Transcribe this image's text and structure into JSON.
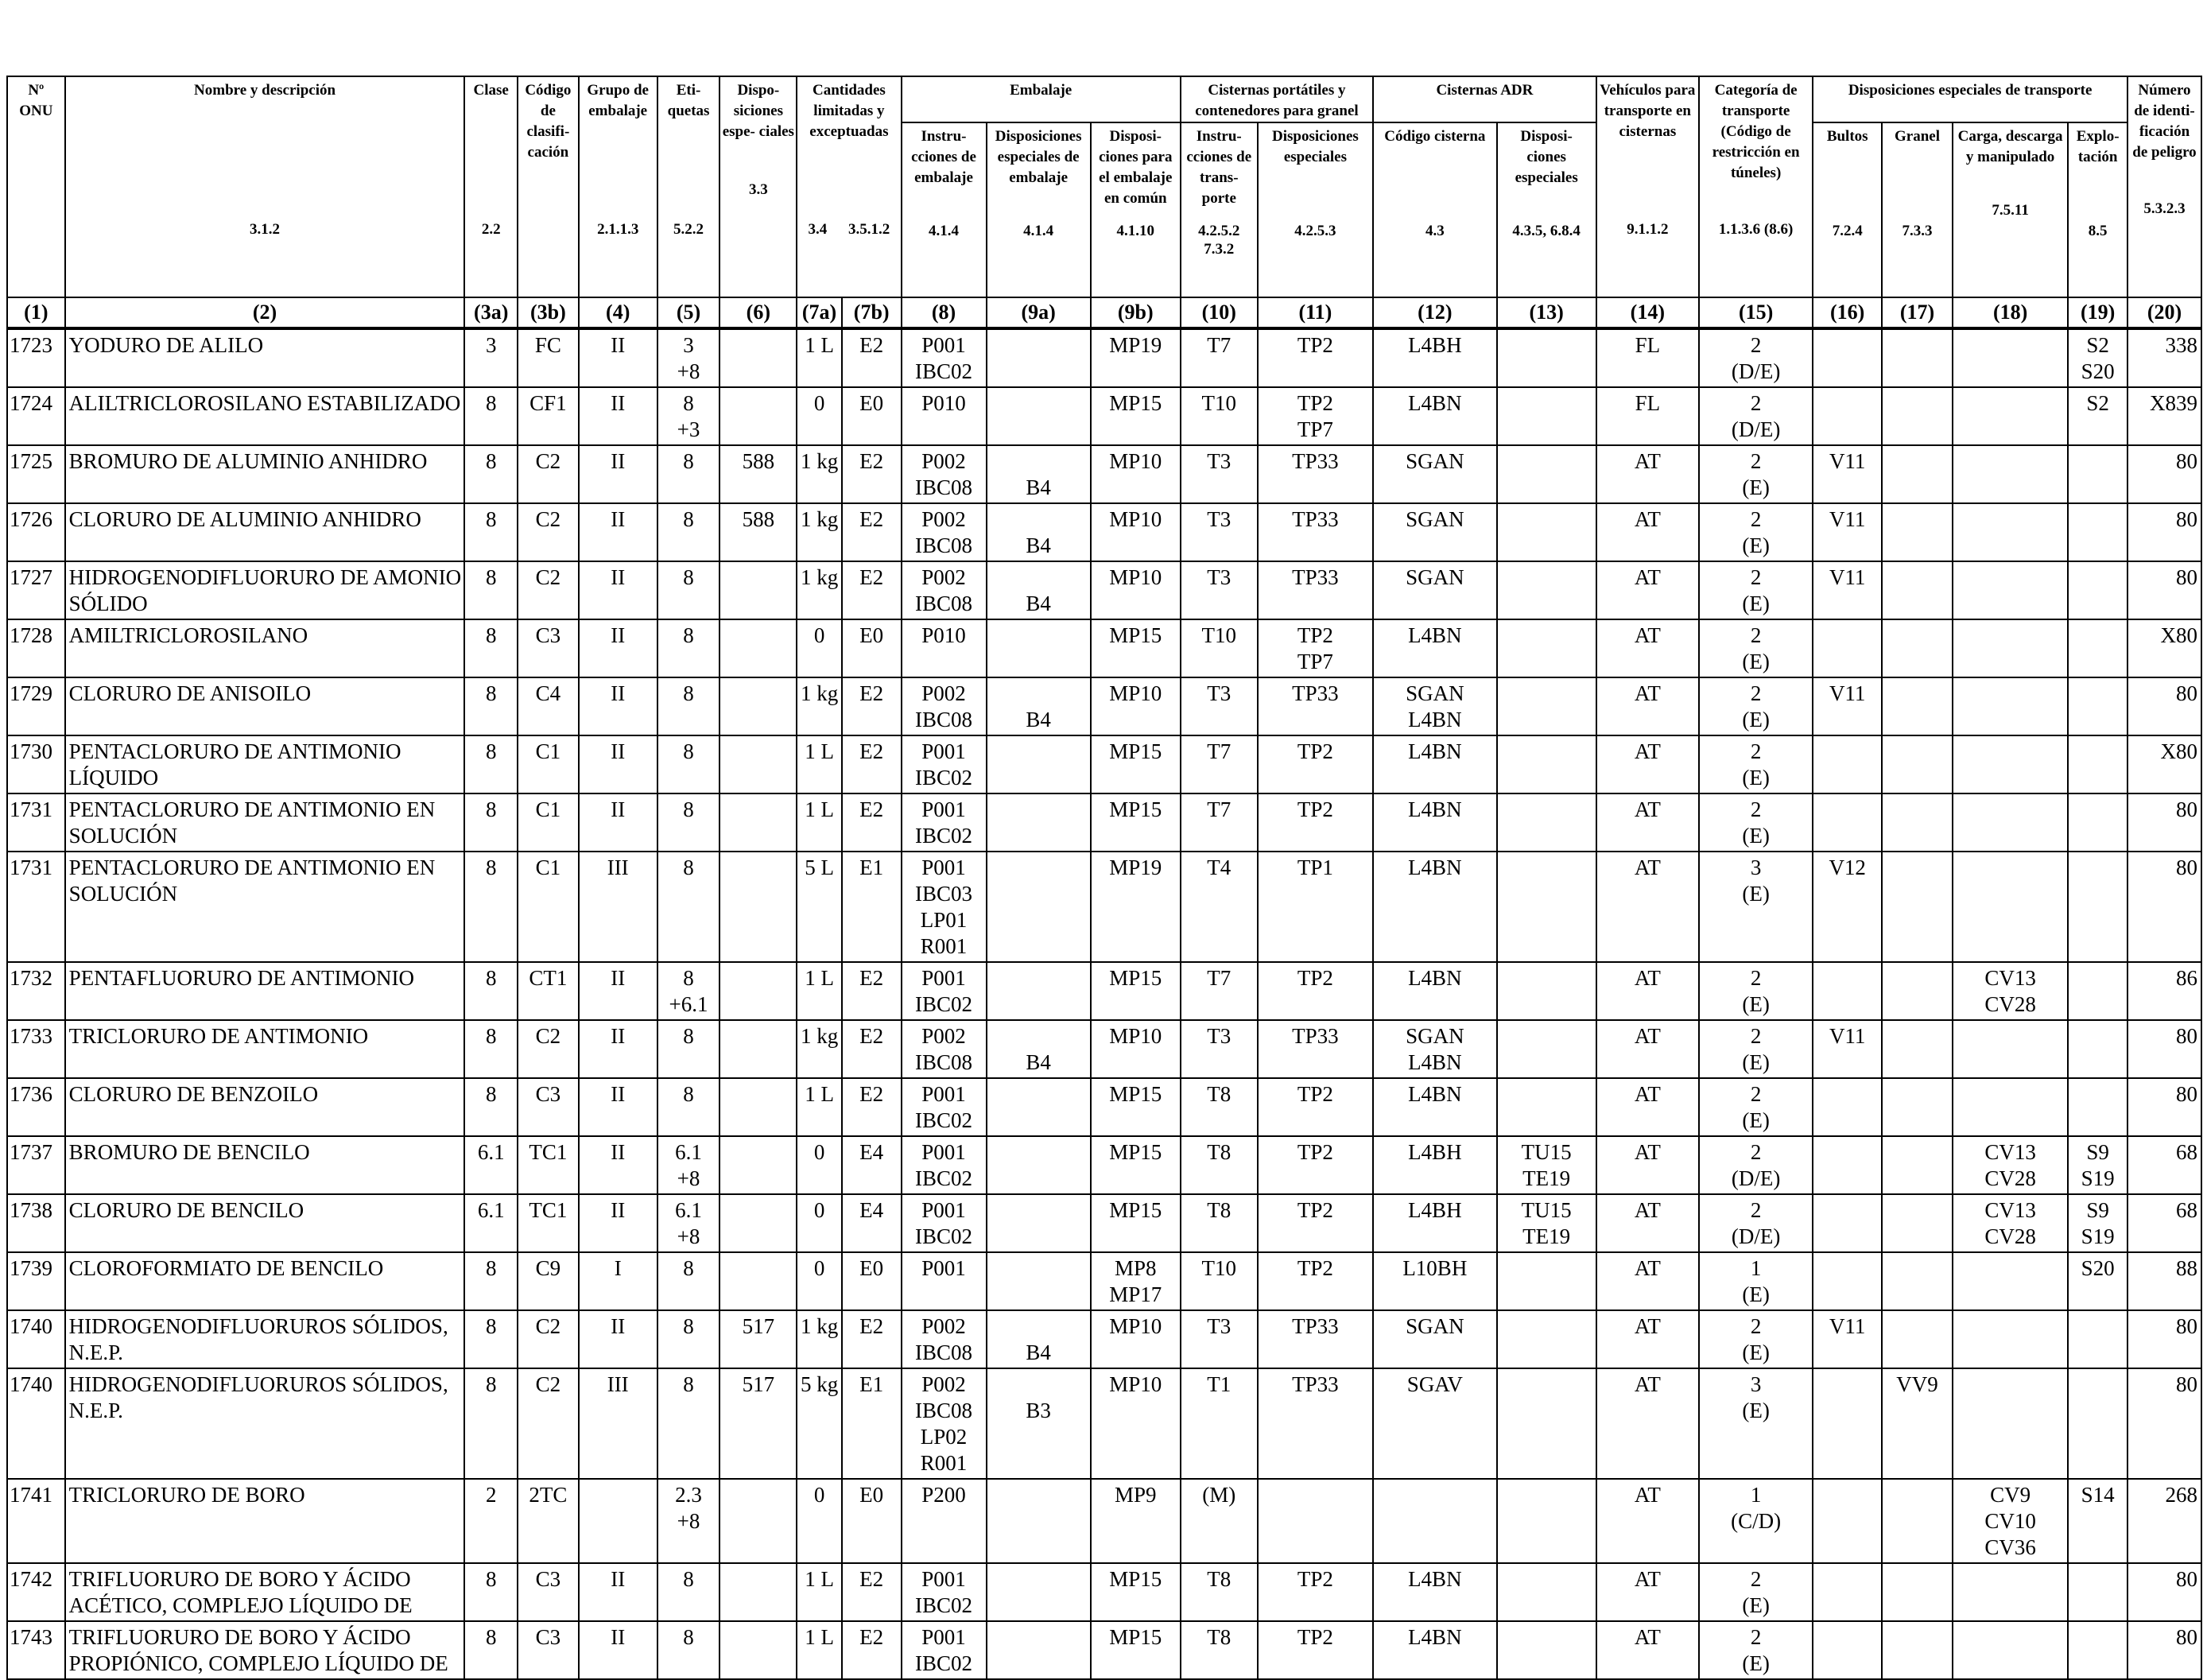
{
  "header": {
    "onu": "Nº ONU",
    "nombre": "Nombre y descripción",
    "clase": "Clase",
    "codigo": "Código de clasifi- cación",
    "grupo": "Grupo de embalaje",
    "etiquetas": "Eti- quetas",
    "disposiciones": "Dispo- siciones espe- ciales",
    "cantidades": "Cantidades limitadas y exceptuadas",
    "embalaje": "Embalaje",
    "instrucciones_embalaje": "Instru- cciones de embalaje",
    "disp_esp_embalaje": "Disposiciones especiales de embalaje",
    "disp_embalaje_comun": "Disposi- ciones para el embalaje en común",
    "cisternas_portatiles": "Cisternas portátiles y contenedores para granel",
    "instrucciones_transporte": "Instru- cciones de trans- porte",
    "disp_especiales_cisternas": "Disposiciones especiales",
    "cisternas_adr": "Cisternas ADR",
    "codigo_cisterna": "Código cisterna",
    "disp_especiales_adr": "Disposi- ciones especiales",
    "vehiculos": "Vehículos para transporte en cisternas",
    "categoria": "Categoría de transporte (Código de restricción en túneles)",
    "disp_esp_transporte": "Disposiciones especiales de transporte",
    "bultos": "Bultos",
    "granel": "Granel",
    "carga": "Carga, descarga y manipulado",
    "explotacion": "Explo- tación",
    "numero_peligro": "Número de identi- ficación de peligro"
  },
  "references": {
    "nombre": "3.1.2",
    "clase": "2.2",
    "grupo": "2.1.1.3",
    "etiquetas": "5.2.2",
    "disposiciones": "3.3",
    "lq": "3.4",
    "eq": "3.5.1.2",
    "instrucciones_embalaje": "4.1.4",
    "disp_esp_embalaje": "4.1.4",
    "disp_embalaje_comun": "4.1.10",
    "instrucciones_transporte": "4.2.5.2 7.3.2",
    "disp_especiales_cisternas": "4.2.5.3",
    "codigo_cisterna": "4.3",
    "disp_especiales_adr": "4.3.5, 6.8.4",
    "vehiculos": "9.1.1.2",
    "categoria": "1.1.3.6 (8.6)",
    "bultos": "7.2.4",
    "granel": "7.3.3",
    "carga": "7.5.11",
    "explotacion": "8.5",
    "numero_peligro": "5.3.2.3"
  },
  "column_numbers": [
    "(1)",
    "(2)",
    "(3a)",
    "(3b)",
    "(4)",
    "(5)",
    "(6)",
    "(7a)",
    "(7b)",
    "(8)",
    "(9a)",
    "(9b)",
    "(10)",
    "(11)",
    "(12)",
    "(13)",
    "(14)",
    "(15)",
    "(16)",
    "(17)",
    "(18)",
    "(19)",
    "(20)"
  ],
  "rows": [
    {
      "onu": "1723",
      "name": "YODURO DE ALILO",
      "clase": "3",
      "codigo": "FC",
      "grupo": "II",
      "etiquetas": [
        "3",
        "+8"
      ],
      "disp": "",
      "lq": "1 L",
      "eq": "E2",
      "pi": [
        "P001",
        "IBC02"
      ],
      "pp": [],
      "mp": [
        "MP19"
      ],
      "tpi": [
        "T7"
      ],
      "tp": [
        "TP2"
      ],
      "tank": [
        "L4BH"
      ],
      "tu": [],
      "veh": "FL",
      "cat": [
        "2",
        "(D/E)"
      ],
      "v": [],
      "vv": [],
      "cv": [],
      "s": [
        "S2",
        "S20"
      ],
      "hin": "338"
    },
    {
      "onu": "1724",
      "name": "ALILTRICLOROSILANO ESTABILIZADO",
      "clase": "8",
      "codigo": "CF1",
      "grupo": "II",
      "etiquetas": [
        "8",
        "+3"
      ],
      "disp": "",
      "lq": "0",
      "eq": "E0",
      "pi": [
        "P010"
      ],
      "pp": [],
      "mp": [
        "MP15"
      ],
      "tpi": [
        "T10"
      ],
      "tp": [
        "TP2",
        "TP7"
      ],
      "tank": [
        "L4BN"
      ],
      "tu": [],
      "veh": "FL",
      "cat": [
        "2",
        "(D/E)"
      ],
      "v": [],
      "vv": [],
      "cv": [],
      "s": [
        "S2"
      ],
      "hin": "X839"
    },
    {
      "onu": "1725",
      "name": "BROMURO DE ALUMINIO ANHIDRO",
      "clase": "8",
      "codigo": "C2",
      "grupo": "II",
      "etiquetas": [
        "8"
      ],
      "disp": "588",
      "lq": "1 kg",
      "eq": "E2",
      "pi": [
        "P002",
        "IBC08"
      ],
      "pp": [
        "",
        "B4"
      ],
      "mp": [
        "MP10"
      ],
      "tpi": [
        "T3"
      ],
      "tp": [
        "TP33"
      ],
      "tank": [
        "SGAN"
      ],
      "tu": [],
      "veh": "AT",
      "cat": [
        "2",
        "(E)"
      ],
      "v": [
        "V11"
      ],
      "vv": [],
      "cv": [],
      "s": [],
      "hin": "80"
    },
    {
      "onu": "1726",
      "name": "CLORURO DE ALUMINIO ANHIDRO",
      "clase": "8",
      "codigo": "C2",
      "grupo": "II",
      "etiquetas": [
        "8"
      ],
      "disp": "588",
      "lq": "1 kg",
      "eq": "E2",
      "pi": [
        "P002",
        "IBC08"
      ],
      "pp": [
        "",
        "B4"
      ],
      "mp": [
        "MP10"
      ],
      "tpi": [
        "T3"
      ],
      "tp": [
        "TP33"
      ],
      "tank": [
        "SGAN"
      ],
      "tu": [],
      "veh": "AT",
      "cat": [
        "2",
        "(E)"
      ],
      "v": [
        "V11"
      ],
      "vv": [],
      "cv": [],
      "s": [],
      "hin": "80"
    },
    {
      "onu": "1727",
      "name": "HIDROGENODIFLUORURO DE AMONIO SÓLIDO",
      "clase": "8",
      "codigo": "C2",
      "grupo": "II",
      "etiquetas": [
        "8"
      ],
      "disp": "",
      "lq": "1 kg",
      "eq": "E2",
      "pi": [
        "P002",
        "IBC08"
      ],
      "pp": [
        "",
        "B4"
      ],
      "mp": [
        "MP10"
      ],
      "tpi": [
        "T3"
      ],
      "tp": [
        "TP33"
      ],
      "tank": [
        "SGAN"
      ],
      "tu": [],
      "veh": "AT",
      "cat": [
        "2",
        "(E)"
      ],
      "v": [
        "V11"
      ],
      "vv": [],
      "cv": [],
      "s": [],
      "hin": "80"
    },
    {
      "onu": "1728",
      "name": "AMILTRICLOROSILANO",
      "clase": "8",
      "codigo": "C3",
      "grupo": "II",
      "etiquetas": [
        "8"
      ],
      "disp": "",
      "lq": "0",
      "eq": "E0",
      "pi": [
        "P010"
      ],
      "pp": [],
      "mp": [
        "MP15"
      ],
      "tpi": [
        "T10"
      ],
      "tp": [
        "TP2",
        "TP7"
      ],
      "tank": [
        "L4BN"
      ],
      "tu": [],
      "veh": "AT",
      "cat": [
        "2",
        "(E)"
      ],
      "v": [],
      "vv": [],
      "cv": [],
      "s": [],
      "hin": "X80"
    },
    {
      "onu": "1729",
      "name": "CLORURO DE ANISOILO",
      "clase": "8",
      "codigo": "C4",
      "grupo": "II",
      "etiquetas": [
        "8"
      ],
      "disp": "",
      "lq": "1 kg",
      "eq": "E2",
      "pi": [
        "P002",
        "IBC08"
      ],
      "pp": [
        "",
        "B4"
      ],
      "mp": [
        "MP10"
      ],
      "tpi": [
        "T3"
      ],
      "tp": [
        "TP33"
      ],
      "tank": [
        "SGAN",
        "L4BN"
      ],
      "tu": [],
      "veh": "AT",
      "cat": [
        "2",
        "(E)"
      ],
      "v": [
        "V11"
      ],
      "vv": [],
      "cv": [],
      "s": [],
      "hin": "80"
    },
    {
      "onu": "1730",
      "name": "PENTACLORURO DE ANTIMONIO LÍQUIDO",
      "clase": "8",
      "codigo": "C1",
      "grupo": "II",
      "etiquetas": [
        "8"
      ],
      "disp": "",
      "lq": "1 L",
      "eq": "E2",
      "pi": [
        "P001",
        "IBC02"
      ],
      "pp": [],
      "mp": [
        "MP15"
      ],
      "tpi": [
        "T7"
      ],
      "tp": [
        "TP2"
      ],
      "tank": [
        "L4BN"
      ],
      "tu": [],
      "veh": "AT",
      "cat": [
        "2",
        "(E)"
      ],
      "v": [],
      "vv": [],
      "cv": [],
      "s": [],
      "hin": "X80"
    },
    {
      "onu": "1731",
      "name": "PENTACLORURO DE ANTIMONIO EN SOLUCIÓN",
      "clase": "8",
      "codigo": "C1",
      "grupo": "II",
      "etiquetas": [
        "8"
      ],
      "disp": "",
      "lq": "1 L",
      "eq": "E2",
      "pi": [
        "P001",
        "IBC02"
      ],
      "pp": [],
      "mp": [
        "MP15"
      ],
      "tpi": [
        "T7"
      ],
      "tp": [
        "TP2"
      ],
      "tank": [
        "L4BN"
      ],
      "tu": [],
      "veh": "AT",
      "cat": [
        "2",
        "(E)"
      ],
      "v": [],
      "vv": [],
      "cv": [],
      "s": [],
      "hin": "80"
    },
    {
      "onu": "1731",
      "name": "PENTACLORURO DE ANTIMONIO EN SOLUCIÓN",
      "clase": "8",
      "codigo": "C1",
      "grupo": "III",
      "etiquetas": [
        "8"
      ],
      "disp": "",
      "lq": "5 L",
      "eq": "E1",
      "pi": [
        "P001",
        "IBC03",
        "LP01",
        "R001"
      ],
      "pp": [],
      "mp": [
        "MP19"
      ],
      "tpi": [
        "T4"
      ],
      "tp": [
        "TP1"
      ],
      "tank": [
        "L4BN"
      ],
      "tu": [],
      "veh": "AT",
      "cat": [
        "3",
        "(E)"
      ],
      "v": [
        "V12"
      ],
      "vv": [],
      "cv": [],
      "s": [],
      "hin": "80"
    },
    {
      "onu": "1732",
      "name": "PENTAFLUORURO DE ANTIMONIO",
      "clase": "8",
      "codigo": "CT1",
      "grupo": "II",
      "etiquetas": [
        "8",
        "+6.1"
      ],
      "disp": "",
      "lq": "1 L",
      "eq": "E2",
      "pi": [
        "P001",
        "IBC02"
      ],
      "pp": [],
      "mp": [
        "MP15"
      ],
      "tpi": [
        "T7"
      ],
      "tp": [
        "TP2"
      ],
      "tank": [
        "L4BN"
      ],
      "tu": [],
      "veh": "AT",
      "cat": [
        "2",
        "(E)"
      ],
      "v": [],
      "vv": [],
      "cv": [
        "CV13",
        "CV28"
      ],
      "s": [],
      "hin": "86"
    },
    {
      "onu": "1733",
      "name": "TRICLORURO DE ANTIMONIO",
      "clase": "8",
      "codigo": "C2",
      "grupo": "II",
      "etiquetas": [
        "8"
      ],
      "disp": "",
      "lq": "1 kg",
      "eq": "E2",
      "pi": [
        "P002",
        "IBC08"
      ],
      "pp": [
        "",
        "B4"
      ],
      "mp": [
        "MP10"
      ],
      "tpi": [
        "T3"
      ],
      "tp": [
        "TP33"
      ],
      "tank": [
        "SGAN",
        "L4BN"
      ],
      "tu": [],
      "veh": "AT",
      "cat": [
        "2",
        "(E)"
      ],
      "v": [
        "V11"
      ],
      "vv": [],
      "cv": [],
      "s": [],
      "hin": "80"
    },
    {
      "onu": "1736",
      "name": "CLORURO DE BENZOILO",
      "clase": "8",
      "codigo": "C3",
      "grupo": "II",
      "etiquetas": [
        "8"
      ],
      "disp": "",
      "lq": "1 L",
      "eq": "E2",
      "pi": [
        "P001",
        "IBC02"
      ],
      "pp": [],
      "mp": [
        "MP15"
      ],
      "tpi": [
        "T8"
      ],
      "tp": [
        "TP2"
      ],
      "tank": [
        "L4BN"
      ],
      "tu": [],
      "veh": "AT",
      "cat": [
        "2",
        "(E)"
      ],
      "v": [],
      "vv": [],
      "cv": [],
      "s": [],
      "hin": "80"
    },
    {
      "onu": "1737",
      "name": "BROMURO DE BENCILO",
      "clase": "6.1",
      "codigo": "TC1",
      "grupo": "II",
      "etiquetas": [
        "6.1",
        "+8"
      ],
      "disp": "",
      "lq": "0",
      "eq": "E4",
      "pi": [
        "P001",
        "IBC02"
      ],
      "pp": [],
      "mp": [
        "MP15"
      ],
      "tpi": [
        "T8"
      ],
      "tp": [
        "TP2"
      ],
      "tank": [
        "L4BH"
      ],
      "tu": [
        "TU15",
        "TE19"
      ],
      "veh": "AT",
      "cat": [
        "2",
        "(D/E)"
      ],
      "v": [],
      "vv": [],
      "cv": [
        "CV13",
        "CV28"
      ],
      "s": [
        "S9",
        "S19"
      ],
      "hin": "68"
    },
    {
      "onu": "1738",
      "name": "CLORURO DE BENCILO",
      "clase": "6.1",
      "codigo": "TC1",
      "grupo": "II",
      "etiquetas": [
        "6.1",
        "+8"
      ],
      "disp": "",
      "lq": "0",
      "eq": "E4",
      "pi": [
        "P001",
        "IBC02"
      ],
      "pp": [],
      "mp": [
        "MP15"
      ],
      "tpi": [
        "T8"
      ],
      "tp": [
        "TP2"
      ],
      "tank": [
        "L4BH"
      ],
      "tu": [
        "TU15",
        "TE19"
      ],
      "veh": "AT",
      "cat": [
        "2",
        "(D/E)"
      ],
      "v": [],
      "vv": [],
      "cv": [
        "CV13",
        "CV28"
      ],
      "s": [
        "S9",
        "S19"
      ],
      "hin": "68"
    },
    {
      "onu": "1739",
      "name": "CLOROFORMIATO DE BENCILO",
      "clase": "8",
      "codigo": "C9",
      "grupo": "I",
      "etiquetas": [
        "8"
      ],
      "disp": "",
      "lq": "0",
      "eq": "E0",
      "pi": [
        "P001"
      ],
      "pp": [],
      "mp": [
        "MP8",
        "MP17"
      ],
      "tpi": [
        "T10"
      ],
      "tp": [
        "TP2"
      ],
      "tank": [
        "L10BH"
      ],
      "tu": [],
      "veh": "AT",
      "cat": [
        "1",
        "(E)"
      ],
      "v": [],
      "vv": [],
      "cv": [],
      "s": [
        "S20"
      ],
      "hin": "88"
    },
    {
      "onu": "1740",
      "name": "HIDROGENODIFLUORUROS SÓLIDOS, N.E.P.",
      "clase": "8",
      "codigo": "C2",
      "grupo": "II",
      "etiquetas": [
        "8"
      ],
      "disp": "517",
      "lq": "1 kg",
      "eq": "E2",
      "pi": [
        "P002",
        "IBC08"
      ],
      "pp": [
        "",
        "B4"
      ],
      "mp": [
        "MP10"
      ],
      "tpi": [
        "T3"
      ],
      "tp": [
        "TP33"
      ],
      "tank": [
        "SGAN"
      ],
      "tu": [],
      "veh": "AT",
      "cat": [
        "2",
        "(E)"
      ],
      "v": [
        "V11"
      ],
      "vv": [],
      "cv": [],
      "s": [],
      "hin": "80"
    },
    {
      "onu": "1740",
      "name": "HIDROGENODIFLUORUROS SÓLIDOS, N.E.P.",
      "clase": "8",
      "codigo": "C2",
      "grupo": "III",
      "etiquetas": [
        "8"
      ],
      "disp": "517",
      "lq": "5 kg",
      "eq": "E1",
      "pi": [
        "P002",
        "IBC08",
        "LP02",
        "R001"
      ],
      "pp": [
        "",
        "B3"
      ],
      "mp": [
        "MP10"
      ],
      "tpi": [
        "T1"
      ],
      "tp": [
        "TP33"
      ],
      "tank": [
        "SGAV"
      ],
      "tu": [],
      "veh": "AT",
      "cat": [
        "3",
        "(E)"
      ],
      "v": [],
      "vv": [
        "VV9"
      ],
      "cv": [],
      "s": [],
      "hin": "80"
    },
    {
      "onu": "1741",
      "name": "TRICLORURO DE BORO",
      "clase": "2",
      "codigo": "2TC",
      "grupo": "",
      "etiquetas": [
        "2.3",
        "+8"
      ],
      "disp": "",
      "lq": "0",
      "eq": "E0",
      "pi": [
        "P200"
      ],
      "pp": [],
      "mp": [
        "MP9"
      ],
      "tpi": [
        "(M)"
      ],
      "tp": [],
      "tank": [],
      "tu": [],
      "veh": "AT",
      "cat": [
        "1",
        "(C/D)"
      ],
      "v": [],
      "vv": [],
      "cv": [
        "CV9",
        "CV10",
        "CV36"
      ],
      "s": [
        "S14"
      ],
      "hin": "268"
    },
    {
      "onu": "1742",
      "name": "TRIFLUORURO DE BORO Y ÁCIDO ACÉTICO, COMPLEJO LÍQUIDO DE",
      "clase": "8",
      "codigo": "C3",
      "grupo": "II",
      "etiquetas": [
        "8"
      ],
      "disp": "",
      "lq": "1 L",
      "eq": "E2",
      "pi": [
        "P001",
        "IBC02"
      ],
      "pp": [],
      "mp": [
        "MP15"
      ],
      "tpi": [
        "T8"
      ],
      "tp": [
        "TP2"
      ],
      "tank": [
        "L4BN"
      ],
      "tu": [],
      "veh": "AT",
      "cat": [
        "2",
        "(E)"
      ],
      "v": [],
      "vv": [],
      "cv": [],
      "s": [],
      "hin": "80"
    },
    {
      "onu": "1743",
      "name": "TRIFLUORURO DE BORO Y ÁCIDO PROPIÓNICO, COMPLEJO LÍQUIDO DE",
      "clase": "8",
      "codigo": "C3",
      "grupo": "II",
      "etiquetas": [
        "8"
      ],
      "disp": "",
      "lq": "1 L",
      "eq": "E2",
      "pi": [
        "P001",
        "IBC02"
      ],
      "pp": [],
      "mp": [
        "MP15"
      ],
      "tpi": [
        "T8"
      ],
      "tp": [
        "TP2"
      ],
      "tank": [
        "L4BN"
      ],
      "tu": [],
      "veh": "AT",
      "cat": [
        "2",
        "(E)"
      ],
      "v": [],
      "vv": [],
      "cv": [],
      "s": [],
      "hin": "80"
    }
  ]
}
